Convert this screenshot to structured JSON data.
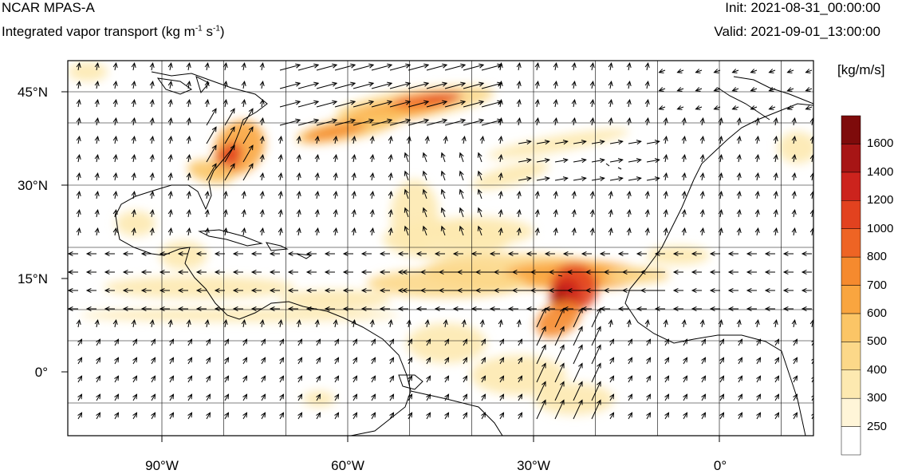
{
  "header": {
    "model": "NCAR MPAS-A",
    "field_main": "Integrated vapor transport (kg m",
    "exp1": "-1",
    "mid": " s",
    "exp2": "-1",
    "close": ")",
    "init": "Init: 2021-08-31_00:00:00",
    "valid": "Valid: 2021-09-01_13:00:00"
  },
  "axes": {
    "lat_labels": [
      "45°N",
      "30°N",
      "15°N",
      "0°"
    ],
    "lon_labels": [
      "90°W",
      "60°W",
      "30°W",
      "0°"
    ]
  },
  "colorbar": {
    "unit": "[kg/m/s]",
    "levels": [
      "250",
      "300",
      "400",
      "500",
      "600",
      "700",
      "800",
      "1000",
      "1200",
      "1400",
      "1600"
    ],
    "colors": [
      "#ffffff",
      "#fff5d8",
      "#fde9b0",
      "#fcd889",
      "#fbc566",
      "#f9a53f",
      "#f58a2e",
      "#ee6424",
      "#e2421f",
      "#cc231d",
      "#a71515",
      "#7e0b0b"
    ]
  }
}
